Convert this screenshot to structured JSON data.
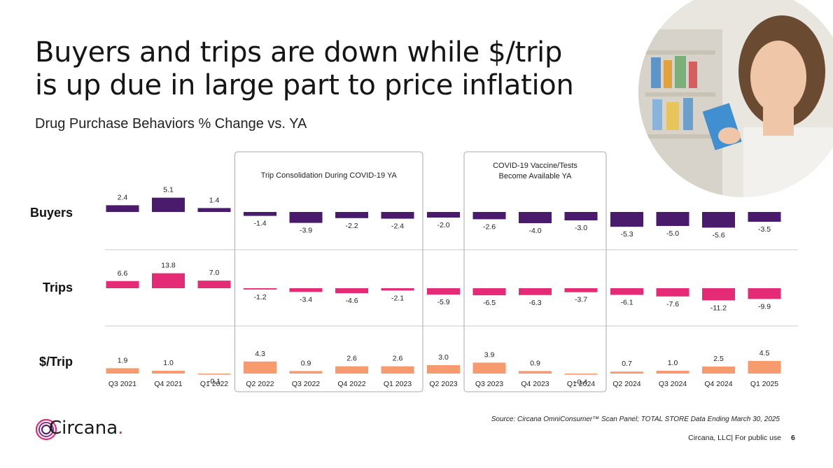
{
  "title_lines": [
    "Buyers and trips are down while $/trip",
    "is up due in large part to price inflation"
  ],
  "subtitle": "Drug Purchase Behaviors % Change vs. YA",
  "source": "Source: Circana OmniConsumer™ Scan Panel; TOTAL STORE Data Ending March 30, 2025",
  "footer": "Circana, LLC|  For public use",
  "page_number": "6",
  "logo": {
    "name": "Circana",
    "dot": "."
  },
  "colors": {
    "buyers": "#4a1a6c",
    "trips": "#e52b76",
    "trip_value": "#f79a6e",
    "divider": "#c8c8c8",
    "box": "#aaaaaa"
  },
  "chart_data": {
    "type": "bar",
    "categories": [
      "Q3  2021",
      "Q4 2021",
      "Q1 2022",
      "Q2 2022",
      "Q3 2022",
      "Q4 2022",
      "Q1 2023",
      "Q2 2023",
      "Q3 2023",
      "Q4 2023",
      "Q1 2024",
      "Q2 2024",
      "Q3 2024",
      "Q4 2024",
      "Q1 2025"
    ],
    "series": [
      {
        "name": "Buyers",
        "values": [
          2.4,
          5.1,
          1.4,
          -1.4,
          -3.9,
          -2.2,
          -2.4,
          -2.0,
          -2.6,
          -4.0,
          -3.0,
          -5.3,
          -5.0,
          -5.6,
          -3.5
        ]
      },
      {
        "name": "Trips",
        "values": [
          6.6,
          13.8,
          7.0,
          -1.2,
          -3.4,
          -4.6,
          -2.1,
          -5.9,
          -6.5,
          -6.3,
          -3.7,
          -6.1,
          -7.6,
          -11.2,
          -9.9
        ]
      },
      {
        "name": "$/Trip",
        "values": [
          1.9,
          1.0,
          -0.1,
          4.3,
          0.9,
          2.6,
          2.6,
          3.0,
          3.9,
          0.9,
          -0.4,
          0.7,
          1.0,
          2.5,
          4.5
        ]
      }
    ],
    "annotations": [
      "Trip Consolidation During COVID-19 YA",
      "COVID-19 Vaccine/Tests Become Available YA"
    ]
  }
}
